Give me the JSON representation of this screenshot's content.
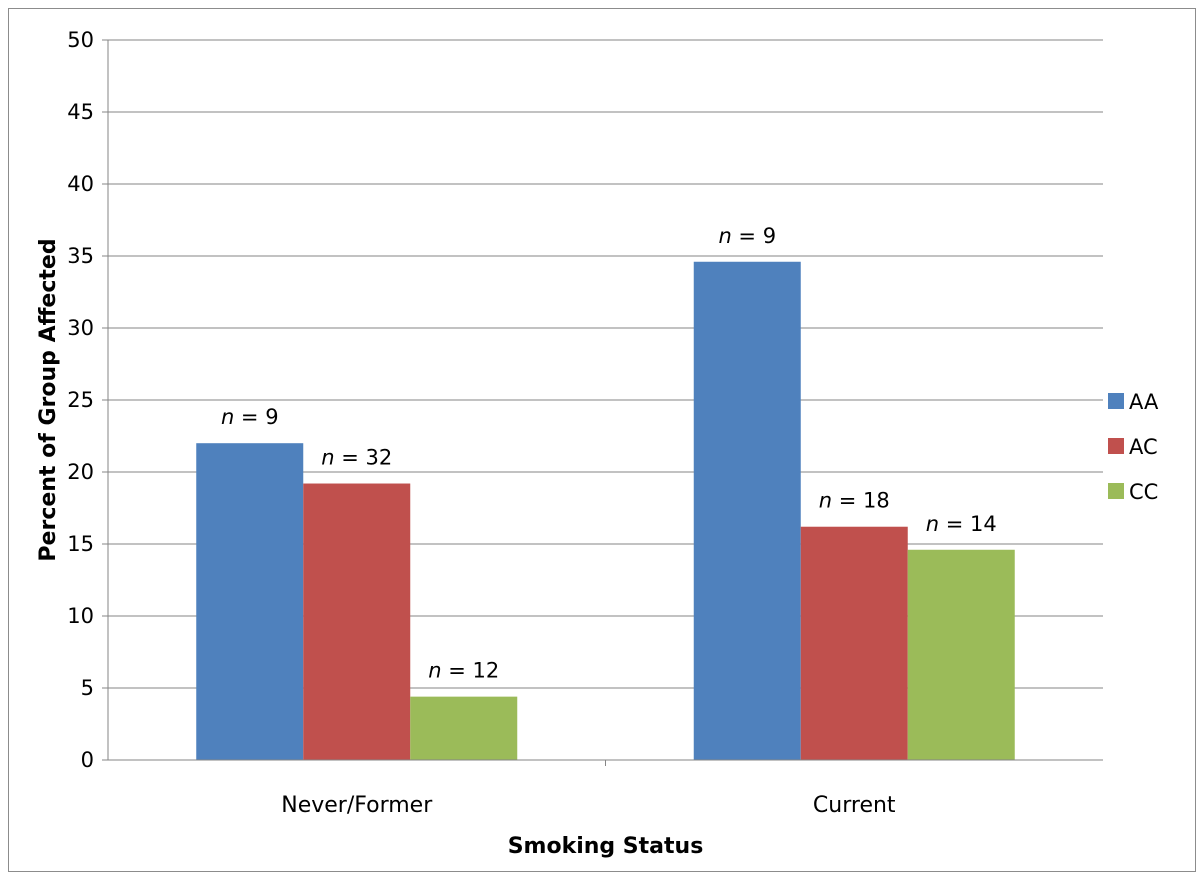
{
  "chart_data": {
    "type": "bar",
    "categories": [
      "Never/Former",
      "Current"
    ],
    "series": [
      {
        "name": "AA",
        "color": "#4f81bd",
        "values": [
          22.0,
          34.6
        ],
        "labels": [
          "n = 9",
          "n = 9"
        ]
      },
      {
        "name": "AC",
        "color": "#c0504d",
        "values": [
          19.2,
          16.2
        ],
        "labels": [
          "n = 32",
          "n = 18"
        ]
      },
      {
        "name": "CC",
        "color": "#9bbb59",
        "values": [
          4.4,
          14.6
        ],
        "labels": [
          "n = 12",
          "n = 14"
        ]
      }
    ],
    "xlabel": "Smoking Status",
    "ylabel": "Percent of Group Affected",
    "ylim": [
      0,
      50
    ],
    "yticks": [
      "0",
      "5",
      "10",
      "15",
      "20",
      "25",
      "30",
      "35",
      "40",
      "45",
      "50"
    ],
    "grid": true,
    "legend_position": "right"
  }
}
